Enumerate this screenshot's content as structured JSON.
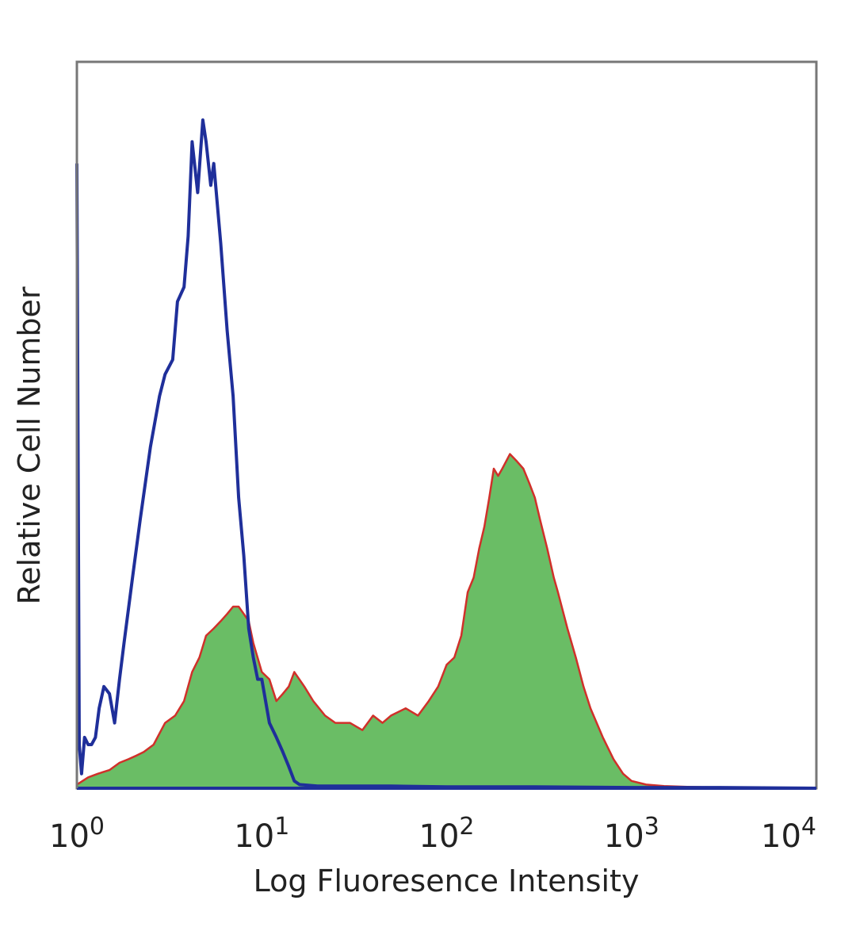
{
  "chart_data": {
    "type": "area",
    "title": "",
    "xlabel": "Log Fluoresence Intensity",
    "ylabel": "Relative Cell Number",
    "x_scale": "log",
    "xlim": [
      1,
      10000
    ],
    "ylim": [
      0,
      100
    ],
    "grid": false,
    "legend": "none",
    "x_ticks": [
      {
        "value": 1,
        "base": "10",
        "exp": "0"
      },
      {
        "value": 10,
        "base": "10",
        "exp": "1"
      },
      {
        "value": 100,
        "base": "10",
        "exp": "2"
      },
      {
        "value": 1000,
        "base": "10",
        "exp": "3"
      },
      {
        "value": 10000,
        "base": "10",
        "exp": "4"
      }
    ],
    "series": [
      {
        "style": "outline",
        "color": "#1f2f9a",
        "x": [
          1.0,
          1.03,
          1.06,
          1.1,
          1.15,
          1.2,
          1.26,
          1.32,
          1.4,
          1.5,
          1.6,
          1.7,
          1.8,
          2.0,
          2.2,
          2.5,
          2.8,
          3.0,
          3.3,
          3.5,
          3.8,
          4.0,
          4.2,
          4.5,
          4.8,
          5.0,
          5.3,
          5.5,
          6.0,
          6.5,
          7.0,
          7.5,
          8.0,
          8.5,
          9.0,
          9.5,
          10.0,
          11.0,
          12.0,
          13.0,
          14.0,
          15.0,
          16.0,
          20.0,
          30.0,
          50.0,
          100.0,
          300.0,
          1000.0,
          3000.0,
          10000.0
        ],
        "y": [
          86,
          6,
          2,
          7,
          6,
          6,
          7,
          11,
          14,
          13,
          9,
          15,
          20,
          29,
          37,
          47,
          54,
          57,
          59,
          67,
          69,
          76,
          89,
          82,
          92,
          89,
          83,
          86,
          75,
          63,
          54,
          40,
          32,
          22,
          18,
          15,
          15,
          9,
          7,
          5,
          3,
          1,
          0.5,
          0.3,
          0.3,
          0.3,
          0.2,
          0.2,
          0.1,
          0.1,
          0
        ]
      },
      {
        "style": "filled",
        "color": "#6abd65",
        "outline_color": "#d0302a",
        "x": [
          1.0,
          1.15,
          1.3,
          1.5,
          1.7,
          1.9,
          2.1,
          2.3,
          2.6,
          3.0,
          3.4,
          3.8,
          4.2,
          4.6,
          5.0,
          5.5,
          6.0,
          6.5,
          7.0,
          7.5,
          8.0,
          8.5,
          9.0,
          10.0,
          11.0,
          12.0,
          13.0,
          14.0,
          15.0,
          17.0,
          19.0,
          22.0,
          25.0,
          30.0,
          35.0,
          40.0,
          45.0,
          50.0,
          60.0,
          70.0,
          80.0,
          90.0,
          100.0,
          110.0,
          120.0,
          130.0,
          140.0,
          150.0,
          160.0,
          170.0,
          180.0,
          190.0,
          200.0,
          220.0,
          240.0,
          260.0,
          280.0,
          300.0,
          320.0,
          350.0,
          380.0,
          400.0,
          450.0,
          500.0,
          550.0,
          600.0,
          700.0,
          800.0,
          900.0,
          1000.0,
          1200.0,
          1500.0,
          2000.0,
          3000.0,
          10000.0
        ],
        "y": [
          0.5,
          1.5,
          2,
          2.5,
          3.5,
          4,
          4.5,
          5,
          6,
          9,
          10,
          12,
          16,
          18,
          21,
          22,
          23,
          24,
          25,
          25,
          24,
          23,
          20,
          16,
          15,
          12,
          13,
          14,
          16,
          14,
          12,
          10,
          9,
          9,
          8,
          10,
          9,
          10,
          11,
          10,
          12,
          14,
          17,
          18,
          21,
          27,
          29,
          33,
          36,
          40,
          44,
          43,
          44,
          46,
          45,
          44,
          42,
          40,
          37,
          33,
          29,
          27,
          22,
          18,
          14,
          11,
          7,
          4,
          2,
          1,
          0.5,
          0.3,
          0.2,
          0.1,
          0
        ]
      }
    ]
  }
}
